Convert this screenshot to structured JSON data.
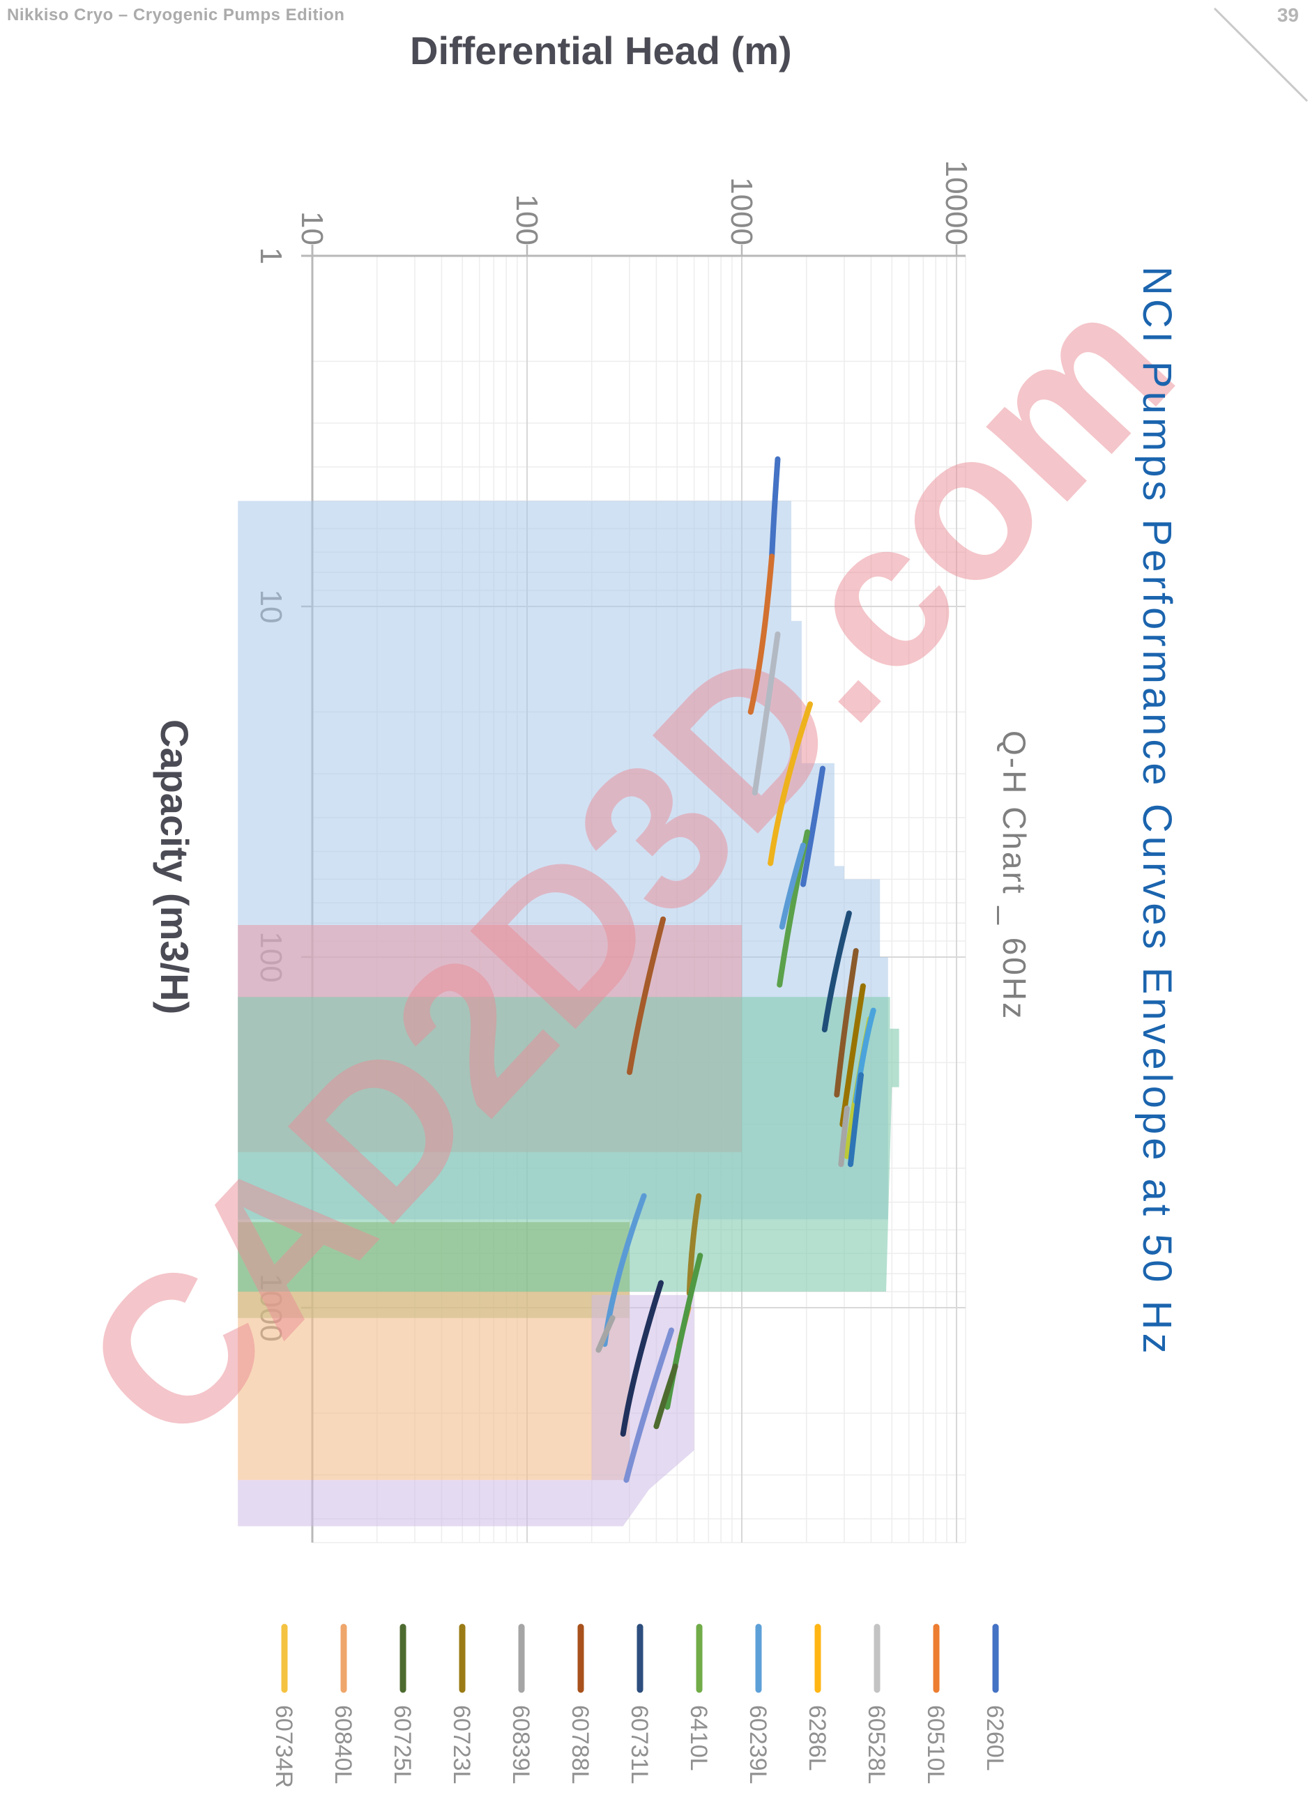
{
  "page": {
    "header_left": "Nikkiso Cryo – Cryogenic Pumps Edition",
    "page_number": "39"
  },
  "titles": {
    "main": "NCI Pumps Performance Curves Envelope at 50 Hz",
    "subtitle": "Q-H Chart _ 60Hz",
    "x_axis": "Differential Head (m)",
    "y_axis": "Capacity (m3/H)"
  },
  "watermark": {
    "text": "CAD2D3D.com",
    "color": "rgba(233,139,150,0.5)"
  },
  "colors": {
    "main_title": "#1b64ae",
    "subtitle": "#7f7f7f",
    "axis_line": "#b8b8b8",
    "grid_major": "#d8d8d8",
    "grid_minor": "#ededed",
    "tick_label": "#8a8a8a",
    "legend_label": "#909090"
  },
  "chart_data": {
    "type": "line",
    "orientation": "rotated-90cw",
    "grid": true,
    "x_axis": {
      "label": "Differential Head (m)",
      "scale": "log",
      "ticks": [
        10,
        100,
        1000,
        10000
      ],
      "range": [
        4.5,
        11000
      ]
    },
    "y_axis": {
      "label": "Capacity (m3/H)",
      "scale": "log",
      "ticks": [
        1,
        10,
        100,
        1000
      ],
      "range": [
        1,
        4700
      ]
    },
    "envelope_regions": [
      {
        "name": "envelope-blue",
        "color": "#a9c9e9",
        "opacity": 0.55,
        "points": [
          [
            4.5,
            5
          ],
          [
            1700,
            5
          ],
          [
            1700,
            11
          ],
          [
            1900,
            11
          ],
          [
            1900,
            28
          ],
          [
            2700,
            28
          ],
          [
            2700,
            55
          ],
          [
            3000,
            55
          ],
          [
            3000,
            60
          ],
          [
            4400,
            60
          ],
          [
            4400,
            100
          ],
          [
            4800,
            100
          ],
          [
            4800,
            560
          ],
          [
            4.5,
            560
          ]
        ]
      },
      {
        "name": "envelope-rose",
        "color": "#e79ba6",
        "opacity": 0.55,
        "points": [
          [
            4.5,
            81
          ],
          [
            1000,
            81
          ],
          [
            1000,
            360
          ],
          [
            4.5,
            360
          ]
        ]
      },
      {
        "name": "envelope-teal",
        "color": "#83cbb1",
        "opacity": 0.6,
        "points": [
          [
            4.5,
            130
          ],
          [
            4900,
            130
          ],
          [
            4900,
            160
          ],
          [
            5400,
            160
          ],
          [
            5400,
            235
          ],
          [
            5000,
            235
          ],
          [
            4700,
            900
          ],
          [
            4.5,
            900
          ]
        ]
      },
      {
        "name": "envelope-green",
        "color": "#86b878",
        "opacity": 0.55,
        "points": [
          [
            4.5,
            570
          ],
          [
            300,
            570
          ],
          [
            300,
            1070
          ],
          [
            4.5,
            1070
          ]
        ]
      },
      {
        "name": "envelope-orange",
        "color": "#f3be8c",
        "opacity": 0.6,
        "points": [
          [
            4.5,
            900
          ],
          [
            300,
            900
          ],
          [
            300,
            3100
          ],
          [
            4.5,
            3100
          ]
        ]
      },
      {
        "name": "envelope-purple",
        "color": "#cdbce6",
        "opacity": 0.55,
        "points": [
          [
            4.5,
            3100
          ],
          [
            200,
            3100
          ],
          [
            200,
            920
          ],
          [
            600,
            920
          ],
          [
            600,
            2550
          ],
          [
            370,
            3300
          ],
          [
            280,
            4200
          ],
          [
            4.5,
            4200
          ]
        ]
      }
    ],
    "curves": [
      {
        "series": "6260L",
        "color": "#4472c4",
        "points": [
          [
            1470,
            3.8
          ],
          [
            1415,
            5.3
          ],
          [
            1380,
            7.2
          ]
        ]
      },
      {
        "series": "60510L",
        "color": "#d2702f",
        "points": [
          [
            1380,
            7.2
          ],
          [
            1260,
            13.8
          ],
          [
            1100,
            20
          ]
        ]
      },
      {
        "series": "60528L",
        "color": "#b3b9c2",
        "points": [
          [
            1470,
            12
          ],
          [
            1280,
            22
          ],
          [
            1150,
            34
          ]
        ]
      },
      {
        "series": "6286L",
        "color": "#eeb21c",
        "points": [
          [
            2080,
            19
          ],
          [
            1520,
            34
          ],
          [
            1360,
            54
          ]
        ]
      },
      {
        "series": "6260L",
        "color": "#4472c4",
        "points": [
          [
            2380,
            29
          ],
          [
            2180,
            41
          ],
          [
            1930,
            62
          ]
        ]
      },
      {
        "series": "6410L",
        "color": "#5ba14b",
        "points": [
          [
            2020,
            44
          ],
          [
            1680,
            75
          ],
          [
            1500,
            120
          ]
        ]
      },
      {
        "series": "60239L",
        "color": "#5b9bd5",
        "points": [
          [
            1930,
            48
          ],
          [
            1680,
            64
          ],
          [
            1540,
            82
          ]
        ]
      },
      {
        "series": "60731L",
        "color": "#1f4e79",
        "points": [
          [
            3160,
            75
          ],
          [
            2660,
            113
          ],
          [
            2430,
            161
          ]
        ]
      },
      {
        "series": "60788L",
        "color": "#a55b2a",
        "points": [
          [
            430,
            78
          ],
          [
            340,
            136
          ],
          [
            300,
            213
          ]
        ]
      },
      {
        "series": "60788L",
        "color": "#8b5a2b",
        "points": [
          [
            3400,
            96
          ],
          [
            2980,
            163
          ],
          [
            2770,
            247
          ]
        ]
      },
      {
        "series": "60723L",
        "color": "#997300",
        "points": [
          [
            3670,
            121
          ],
          [
            3260,
            191
          ],
          [
            2940,
            300
          ]
        ]
      },
      {
        "series": "60734R",
        "color": "#bcc938",
        "points": [
          [
            3950,
            150
          ],
          [
            3400,
            235
          ],
          [
            3090,
            370
          ]
        ]
      },
      {
        "series": "60239L",
        "color": "#4ba3db",
        "points": [
          [
            4100,
            142
          ],
          [
            3700,
            179
          ],
          [
            3400,
            258
          ]
        ]
      },
      {
        "series": "6260L",
        "color": "#2e75b6",
        "points": [
          [
            3590,
            217
          ],
          [
            3400,
            283
          ],
          [
            3210,
            390
          ]
        ]
      },
      {
        "series": "60839L",
        "color": "#a6a6a6",
        "points": [
          [
            3090,
            270
          ],
          [
            2980,
            324
          ],
          [
            2900,
            390
          ]
        ]
      },
      {
        "series": "60239L",
        "color": "#5b9bd5",
        "points": [
          [
            350,
            480
          ],
          [
            250,
            850
          ],
          [
            230,
            1270
          ]
        ]
      },
      {
        "series": "60839L",
        "color": "#a6a6a6",
        "points": [
          [
            250,
            1070
          ],
          [
            230,
            1200
          ],
          [
            215,
            1320
          ]
        ]
      },
      {
        "series": "60723L",
        "color": "#9a832b",
        "points": [
          [
            630,
            480
          ],
          [
            580,
            670
          ],
          [
            570,
            910
          ]
        ]
      },
      {
        "series": "60840L",
        "color": "#efa04b",
        "points": [
          [
            565,
            1000
          ],
          [
            533,
            1140
          ],
          [
            510,
            1280
          ]
        ]
      },
      {
        "series": "6410L",
        "color": "#4f9944",
        "points": [
          [
            640,
            710
          ],
          [
            505,
            1280
          ],
          [
            450,
            1920
          ]
        ]
      },
      {
        "series": "60725L",
        "color": "#4d6b2f",
        "points": [
          [
            490,
            1470
          ],
          [
            433,
            1850
          ],
          [
            400,
            2180
          ]
        ]
      },
      {
        "series": "60731L",
        "color": "#20315c",
        "points": [
          [
            420,
            850
          ],
          [
            310,
            1540
          ],
          [
            280,
            2290
          ]
        ]
      },
      {
        "series": "6260L",
        "color": "#7c8fd4",
        "points": [
          [
            470,
            1160
          ],
          [
            340,
            2120
          ],
          [
            290,
            3100
          ]
        ]
      }
    ],
    "legend": [
      {
        "label": "60734R",
        "color": "#f5c342"
      },
      {
        "label": "60840L",
        "color": "#efa66b"
      },
      {
        "label": "60725L",
        "color": "#4d6b2f"
      },
      {
        "label": "60723L",
        "color": "#9a7b16"
      },
      {
        "label": "60839L",
        "color": "#a5a5a5"
      },
      {
        "label": "60788L",
        "color": "#a8511c"
      },
      {
        "label": "60731L",
        "color": "#2d4e7e"
      },
      {
        "label": "6410L",
        "color": "#71ac48"
      },
      {
        "label": "60239L",
        "color": "#5da0d8"
      },
      {
        "label": "6286L",
        "color": "#ffb614"
      },
      {
        "label": "60528L",
        "color": "#c3c3c3"
      },
      {
        "label": "60510L",
        "color": "#ec7d31"
      },
      {
        "label": "6260L",
        "color": "#4472c4"
      }
    ]
  }
}
